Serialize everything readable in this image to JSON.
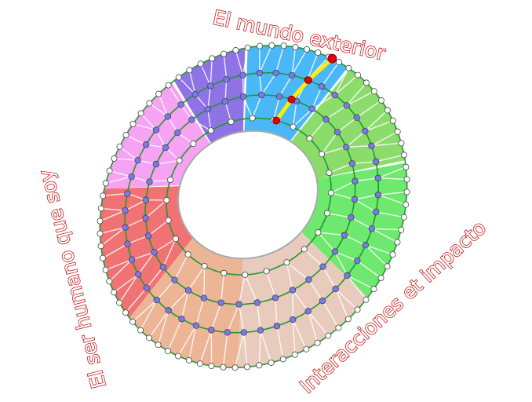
{
  "labels": {
    "top": "El mundo exterior",
    "right": "Interacciones et impacto",
    "left": "El ser humano que soy"
  },
  "colors": {
    "label_outline": "#c41818",
    "ring_line": "#1e9a2e",
    "spoke": "#ffffff",
    "node_outer": "#ffffff",
    "node_inner": "#7a78ee",
    "path_highlight": "#ffee00",
    "path_node": "#e80000",
    "sectors": [
      "#4ab8f8",
      "#8cdc6c",
      "#6ee86e",
      "#e9cbbd",
      "#ecb596",
      "#f07272",
      "#f5a3f2",
      "#8e72e6"
    ]
  }
}
